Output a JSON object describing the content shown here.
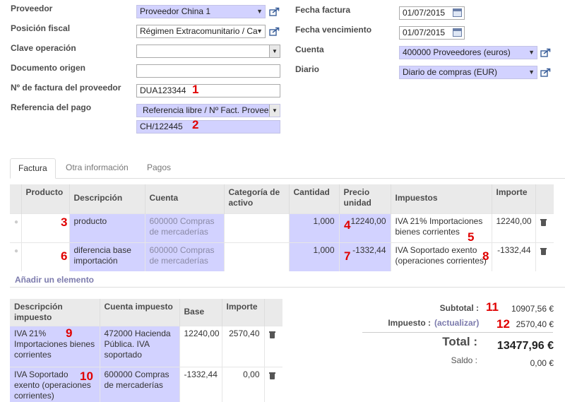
{
  "form": {
    "proveedor_label": "Proveedor",
    "proveedor_value": "Proveedor China 1",
    "posicion_label": "Posición fiscal",
    "posicion_value": "Régimen Extracomunitario / Ca",
    "clave_label": "Clave operación",
    "clave_value": "",
    "doc_origen_label": "Documento origen",
    "doc_origen_value": "",
    "nfactura_label": "Nº de factura del proveedor",
    "nfactura_value": "DUA123344",
    "refpago_label": "Referencia del pago",
    "refpago_type": "Referencia libre / Nº Fact. Provee",
    "refpago_value": "CH/122445",
    "fecha_factura_label": "Fecha factura",
    "fecha_factura_value": "01/07/2015",
    "fecha_venc_label": "Fecha vencimiento",
    "fecha_venc_value": "01/07/2015",
    "cuenta_label": "Cuenta",
    "cuenta_value": "400000 Proveedores (euros)",
    "diario_label": "Diario",
    "diario_value": "Diario de compras (EUR)"
  },
  "tabs": [
    "Factura",
    "Otra información",
    "Pagos"
  ],
  "lines": {
    "headers": [
      "Producto",
      "Descripción",
      "Cuenta",
      "Categoría de activo",
      "Cantidad",
      "Precio unidad",
      "Impuestos",
      "Importe"
    ],
    "rows": [
      {
        "descripcion": "producto",
        "cuenta": "600000 Compras de mercaderías",
        "categoria": "",
        "cantidad": "1,000",
        "precio": "12240,00",
        "impuestos": "IVA 21% Importaciones bienes corrientes",
        "importe": "12240,00"
      },
      {
        "descripcion": "diferencia base importación",
        "cuenta": "600000 Compras de mercaderías",
        "categoria": "",
        "cantidad": "1,000",
        "precio": "-1332,44",
        "impuestos": "IVA Soportado exento (operaciones corrientes)",
        "importe": "-1332,44"
      }
    ],
    "add_label": "Añadir un elemento"
  },
  "taxes": {
    "headers": [
      "Descripción impuesto",
      "Cuenta impuesto",
      "Base",
      "Importe"
    ],
    "rows": [
      {
        "descripcion": "IVA 21% Importaciones bienes corrientes",
        "cuenta": "472000 Hacienda Pública. IVA soportado",
        "base": "12240,00",
        "importe": "2570,40"
      },
      {
        "descripcion": "IVA Soportado exento (operaciones corrientes)",
        "cuenta": "600000 Compras de mercaderías",
        "base": "-1332,44",
        "importe": "0,00"
      }
    ]
  },
  "totals": {
    "subtotal_label": "Subtotal :",
    "subtotal_value": "10907,56 €",
    "impuesto_label": "Impuesto :",
    "actualizar_label": "(actualizar)",
    "impuesto_value": "2570,40 €",
    "total_label": "Total :",
    "total_value": "13477,96 €",
    "saldo_label": "Saldo :",
    "saldo_value": "0,00 €"
  },
  "markers": [
    "1",
    "2",
    "3",
    "4",
    "5",
    "6",
    "7",
    "8",
    "9",
    "10",
    "11",
    "12"
  ],
  "colors": {
    "required_bg": "#d2d2ff",
    "marker": "#e00000",
    "link": "#7c7bad"
  }
}
